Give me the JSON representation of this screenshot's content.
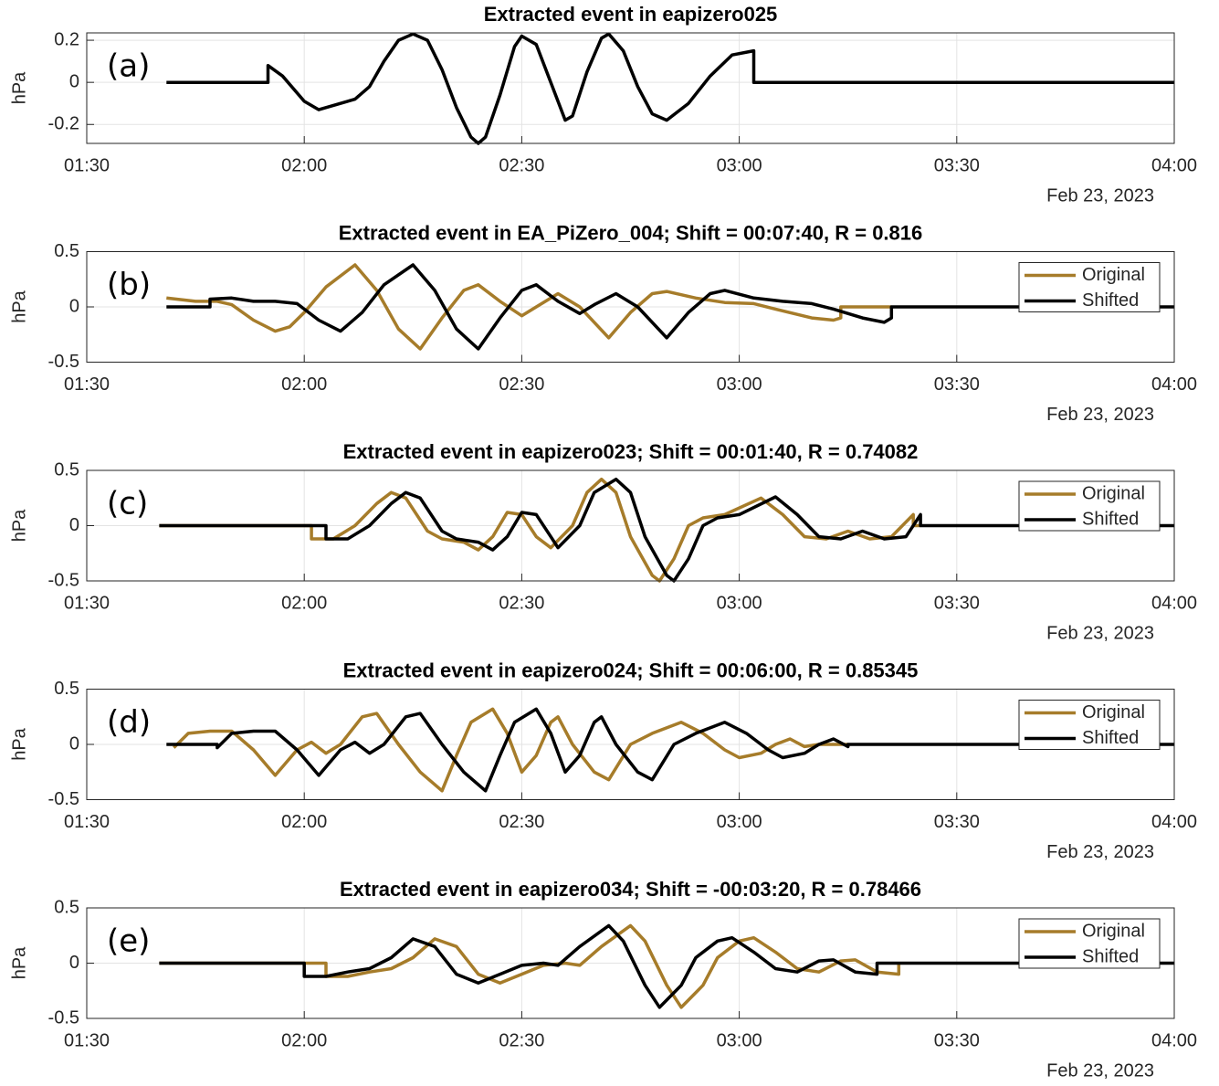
{
  "chart_data": [
    {
      "type": "line",
      "title": "Extracted event in eapizero025",
      "panel_label": "(a)",
      "ylabel": "hPa",
      "date_label": "Feb 23, 2023",
      "xlim": [
        "01:30",
        "04:00"
      ],
      "xticks": [
        "01:30",
        "02:00",
        "02:30",
        "03:00",
        "03:30",
        "04:00"
      ],
      "ylim": [
        -0.29,
        0.235
      ],
      "yticks": [
        -0.2,
        0,
        0.2
      ],
      "grid": true,
      "series": [
        {
          "color": "#000000",
          "x": [
            "01:41",
            "01:55",
            "01:55",
            "01:57",
            "02:00",
            "02:02",
            "02:05",
            "02:07",
            "02:09",
            "02:11",
            "02:13",
            "02:15",
            "02:17",
            "02:19",
            "02:21",
            "02:23",
            "02:24",
            "02:25",
            "02:27",
            "02:29",
            "02:30",
            "02:32",
            "02:34",
            "02:36",
            "02:37",
            "02:39",
            "02:41",
            "02:42",
            "02:44",
            "02:46",
            "02:48",
            "02:50",
            "02:53",
            "02:56",
            "02:59",
            "03:02",
            "03:02",
            "04:00"
          ],
          "values": [
            0,
            0,
            0.08,
            0.03,
            -0.09,
            -0.13,
            -0.1,
            -0.08,
            -0.02,
            0.1,
            0.2,
            0.23,
            0.2,
            0.06,
            -0.12,
            -0.26,
            -0.29,
            -0.26,
            -0.06,
            0.17,
            0.22,
            0.18,
            0,
            -0.18,
            -0.16,
            0.05,
            0.21,
            0.23,
            0.15,
            -0.02,
            -0.15,
            -0.18,
            -0.1,
            0.03,
            0.13,
            0.15,
            0,
            0
          ]
        }
      ]
    },
    {
      "type": "line",
      "title": "Extracted event in EA_PiZero_004; Shift = 00:07:40, R = 0.816",
      "panel_label": "(b)",
      "ylabel": "hPa",
      "date_label": "Feb 23, 2023",
      "xlim": [
        "01:30",
        "04:00"
      ],
      "xticks": [
        "01:30",
        "02:00",
        "02:30",
        "03:00",
        "03:30",
        "04:00"
      ],
      "ylim": [
        -0.5,
        0.5
      ],
      "yticks": [
        -0.5,
        0,
        0.5
      ],
      "grid": true,
      "legend": "upper right",
      "series": [
        {
          "name": "Original",
          "color": "#a67c2a",
          "x": [
            "01:41",
            "01:45",
            "01:48",
            "01:50",
            "01:53",
            "01:56",
            "01:58",
            "02:00",
            "02:03",
            "02:07",
            "02:10",
            "02:13",
            "02:16",
            "02:19",
            "02:22",
            "02:24",
            "02:27",
            "02:30",
            "02:32",
            "02:35",
            "02:38",
            "02:42",
            "02:45",
            "02:48",
            "02:50",
            "02:54",
            "02:58",
            "03:02",
            "03:05",
            "03:10",
            "03:13",
            "03:14",
            "03:14",
            "03:21"
          ],
          "values": [
            0.08,
            0.05,
            0.05,
            0.02,
            -0.12,
            -0.22,
            -0.18,
            -0.05,
            0.18,
            0.38,
            0.15,
            -0.2,
            -0.38,
            -0.1,
            0.15,
            0.2,
            0.05,
            -0.08,
            0,
            0.12,
            0,
            -0.28,
            -0.05,
            0.12,
            0.14,
            0.08,
            0.04,
            0.03,
            -0.02,
            -0.1,
            -0.12,
            -0.1,
            0,
            0
          ]
        },
        {
          "name": "Shifted",
          "color": "#000000",
          "x": [
            "01:41",
            "01:47",
            "01:47",
            "01:50",
            "01:53",
            "01:56",
            "01:59",
            "02:02",
            "02:05",
            "02:08",
            "02:11",
            "02:15",
            "02:18",
            "02:21",
            "02:24",
            "02:27",
            "02:30",
            "02:32",
            "02:35",
            "02:38",
            "02:40",
            "02:43",
            "02:46",
            "02:50",
            "02:53",
            "02:56",
            "02:58",
            "03:02",
            "03:06",
            "03:10",
            "03:13",
            "03:17",
            "03:20",
            "03:21",
            "03:21",
            "04:00"
          ],
          "values": [
            0,
            0,
            0.07,
            0.08,
            0.05,
            0.05,
            0.03,
            -0.12,
            -0.22,
            -0.05,
            0.2,
            0.38,
            0.15,
            -0.2,
            -0.38,
            -0.1,
            0.15,
            0.2,
            0.05,
            -0.06,
            0.02,
            0.12,
            0,
            -0.28,
            -0.05,
            0.12,
            0.15,
            0.08,
            0.05,
            0.03,
            -0.02,
            -0.1,
            -0.14,
            -0.1,
            0,
            0
          ]
        }
      ]
    },
    {
      "type": "line",
      "title": "Extracted event in eapizero023; Shift = 00:01:40, R = 0.74082",
      "panel_label": "(c)",
      "ylabel": "hPa",
      "date_label": "Feb 23, 2023",
      "xlim": [
        "01:30",
        "04:00"
      ],
      "xticks": [
        "01:30",
        "02:00",
        "02:30",
        "03:00",
        "03:30",
        "04:00"
      ],
      "ylim": [
        -0.5,
        0.5
      ],
      "yticks": [
        -0.5,
        0,
        0.5
      ],
      "grid": true,
      "legend": "upper right",
      "series": [
        {
          "name": "Original",
          "color": "#a67c2a",
          "x": [
            "01:40",
            "02:01",
            "02:01",
            "02:04",
            "02:07",
            "02:10",
            "02:12",
            "02:14",
            "02:17",
            "02:19",
            "02:22",
            "02:24",
            "02:26",
            "02:28",
            "02:30",
            "02:32",
            "02:34",
            "02:37",
            "02:39",
            "02:41",
            "02:43",
            "02:45",
            "02:48",
            "02:49",
            "02:51",
            "02:53",
            "02:55",
            "02:58",
            "03:03",
            "03:06",
            "03:09",
            "03:12",
            "03:15",
            "03:18",
            "03:21",
            "03:24",
            "03:24",
            "03:25"
          ],
          "values": [
            0,
            0,
            -0.12,
            -0.12,
            0,
            0.2,
            0.3,
            0.25,
            -0.05,
            -0.12,
            -0.15,
            -0.22,
            -0.1,
            0.12,
            0.1,
            -0.1,
            -0.2,
            0,
            0.3,
            0.42,
            0.3,
            -0.1,
            -0.45,
            -0.5,
            -0.3,
            0,
            0.07,
            0.1,
            0.25,
            0.1,
            -0.1,
            -0.12,
            -0.05,
            -0.12,
            -0.1,
            0.1,
            0,
            0
          ]
        },
        {
          "name": "Shifted",
          "color": "#000000",
          "x": [
            "01:40",
            "02:03",
            "02:03",
            "02:06",
            "02:09",
            "02:12",
            "02:14",
            "02:16",
            "02:19",
            "02:21",
            "02:24",
            "02:26",
            "02:28",
            "02:30",
            "02:32",
            "02:34",
            "02:35",
            "02:38",
            "02:40",
            "02:43",
            "02:45",
            "02:47",
            "02:50",
            "02:51",
            "02:53",
            "02:55",
            "02:57",
            "03:00",
            "03:05",
            "03:08",
            "03:11",
            "03:14",
            "03:17",
            "03:20",
            "03:23",
            "03:25",
            "03:25",
            "04:00"
          ],
          "values": [
            0,
            0,
            -0.12,
            -0.12,
            0,
            0.2,
            0.3,
            0.25,
            -0.05,
            -0.12,
            -0.15,
            -0.22,
            -0.1,
            0.12,
            0.1,
            -0.1,
            -0.2,
            0,
            0.3,
            0.42,
            0.3,
            -0.1,
            -0.45,
            -0.5,
            -0.3,
            0,
            0.07,
            0.1,
            0.26,
            0.1,
            -0.1,
            -0.12,
            -0.05,
            -0.12,
            -0.1,
            0.1,
            0,
            0
          ]
        }
      ]
    },
    {
      "type": "line",
      "title": "Extracted event in eapizero024; Shift = 00:06:00, R = 0.85345",
      "panel_label": "(d)",
      "ylabel": "hPa",
      "date_label": "Feb 23, 2023",
      "xlim": [
        "01:30",
        "04:00"
      ],
      "xticks": [
        "01:30",
        "02:00",
        "02:30",
        "03:00",
        "03:30",
        "04:00"
      ],
      "ylim": [
        -0.5,
        0.5
      ],
      "yticks": [
        -0.5,
        0,
        0.5
      ],
      "grid": true,
      "legend": "upper right",
      "series": [
        {
          "name": "Original",
          "color": "#a67c2a",
          "x": [
            "01:42",
            "01:44",
            "01:47",
            "01:50",
            "01:53",
            "01:56",
            "01:59",
            "02:01",
            "02:03",
            "02:05",
            "02:08",
            "02:10",
            "02:13",
            "02:16",
            "02:19",
            "02:21",
            "02:23",
            "02:26",
            "02:28",
            "02:30",
            "02:32",
            "02:34",
            "02:35",
            "02:37",
            "02:40",
            "02:42",
            "02:45",
            "02:48",
            "02:52",
            "02:55",
            "02:58",
            "03:00",
            "03:03",
            "03:05",
            "03:07",
            "03:09",
            "03:11",
            "03:15"
          ],
          "values": [
            -0.03,
            0.1,
            0.12,
            0.12,
            -0.05,
            -0.28,
            -0.05,
            0.02,
            -0.08,
            0,
            0.25,
            0.28,
            0,
            -0.25,
            -0.42,
            -0.1,
            0.2,
            0.32,
            0.1,
            -0.25,
            -0.1,
            0.2,
            0.25,
            0,
            -0.25,
            -0.32,
            0,
            0.1,
            0.2,
            0.1,
            -0.05,
            -0.12,
            -0.08,
            0,
            0.05,
            -0.02,
            0,
            0
          ]
        },
        {
          "name": "Shifted",
          "color": "#000000",
          "x": [
            "01:41",
            "01:48",
            "01:48",
            "01:50",
            "01:53",
            "01:56",
            "01:59",
            "02:02",
            "02:05",
            "02:07",
            "02:09",
            "02:11",
            "02:14",
            "02:16",
            "02:19",
            "02:22",
            "02:25",
            "02:27",
            "02:29",
            "02:32",
            "02:34",
            "02:36",
            "02:38",
            "02:40",
            "02:41",
            "02:43",
            "02:46",
            "02:48",
            "02:51",
            "02:54",
            "02:58",
            "03:01",
            "03:04",
            "03:06",
            "03:09",
            "03:11",
            "03:13",
            "03:15",
            "03:15",
            "04:00"
          ],
          "values": [
            0,
            0,
            -0.03,
            0.1,
            0.12,
            0.12,
            -0.05,
            -0.28,
            -0.05,
            0.02,
            -0.08,
            0,
            0.25,
            0.28,
            0,
            -0.25,
            -0.42,
            -0.1,
            0.2,
            0.32,
            0.1,
            -0.25,
            -0.1,
            0.2,
            0.25,
            0,
            -0.25,
            -0.32,
            0,
            0.1,
            0.2,
            0.1,
            -0.05,
            -0.12,
            -0.08,
            0,
            0.05,
            -0.02,
            0,
            0
          ]
        }
      ]
    },
    {
      "type": "line",
      "title": "Extracted event in eapizero034; Shift = -00:03:20, R = 0.78466",
      "panel_label": "(e)",
      "ylabel": "hPa",
      "date_label": "Feb 23, 2023",
      "xlim": [
        "01:30",
        "04:00"
      ],
      "xticks": [
        "01:30",
        "02:00",
        "02:30",
        "03:00",
        "03:30",
        "04:00"
      ],
      "ylim": [
        -0.5,
        0.5
      ],
      "yticks": [
        -0.5,
        0,
        0.5
      ],
      "grid": true,
      "legend": "upper right",
      "series": [
        {
          "name": "Original",
          "color": "#a67c2a",
          "x": [
            "01:40",
            "02:03",
            "02:03",
            "02:06",
            "02:09",
            "02:12",
            "02:15",
            "02:18",
            "02:21",
            "02:24",
            "02:27",
            "02:30",
            "02:33",
            "02:36",
            "02:38",
            "02:41",
            "02:45",
            "02:47",
            "02:50",
            "02:52",
            "02:55",
            "02:57",
            "03:00",
            "03:02",
            "03:05",
            "03:08",
            "03:11",
            "03:14",
            "03:16",
            "03:19",
            "03:22",
            "03:22"
          ],
          "values": [
            0,
            0,
            -0.12,
            -0.12,
            -0.08,
            -0.05,
            0.05,
            0.22,
            0.15,
            -0.1,
            -0.18,
            -0.1,
            -0.02,
            0,
            -0.02,
            0.15,
            0.34,
            0.2,
            -0.2,
            -0.4,
            -0.2,
            0.05,
            0.2,
            0.23,
            0.1,
            -0.05,
            -0.08,
            0.02,
            0.03,
            -0.08,
            -0.1,
            0
          ]
        },
        {
          "name": "Shifted",
          "color": "#000000",
          "x": [
            "01:40",
            "02:00",
            "02:00",
            "02:03",
            "02:06",
            "02:09",
            "02:12",
            "02:15",
            "02:18",
            "02:21",
            "02:24",
            "02:27",
            "02:30",
            "02:33",
            "02:35",
            "02:38",
            "02:42",
            "02:44",
            "02:47",
            "02:49",
            "02:52",
            "02:54",
            "02:57",
            "02:59",
            "03:02",
            "03:05",
            "03:08",
            "03:11",
            "03:13",
            "03:16",
            "03:19",
            "03:19",
            "04:00"
          ],
          "values": [
            0,
            0,
            -0.12,
            -0.12,
            -0.08,
            -0.05,
            0.05,
            0.22,
            0.15,
            -0.1,
            -0.18,
            -0.1,
            -0.02,
            0,
            -0.02,
            0.15,
            0.34,
            0.2,
            -0.2,
            -0.4,
            -0.2,
            0.05,
            0.2,
            0.23,
            0.1,
            -0.05,
            -0.08,
            0.02,
            0.03,
            -0.08,
            -0.1,
            0,
            0
          ]
        }
      ]
    }
  ]
}
